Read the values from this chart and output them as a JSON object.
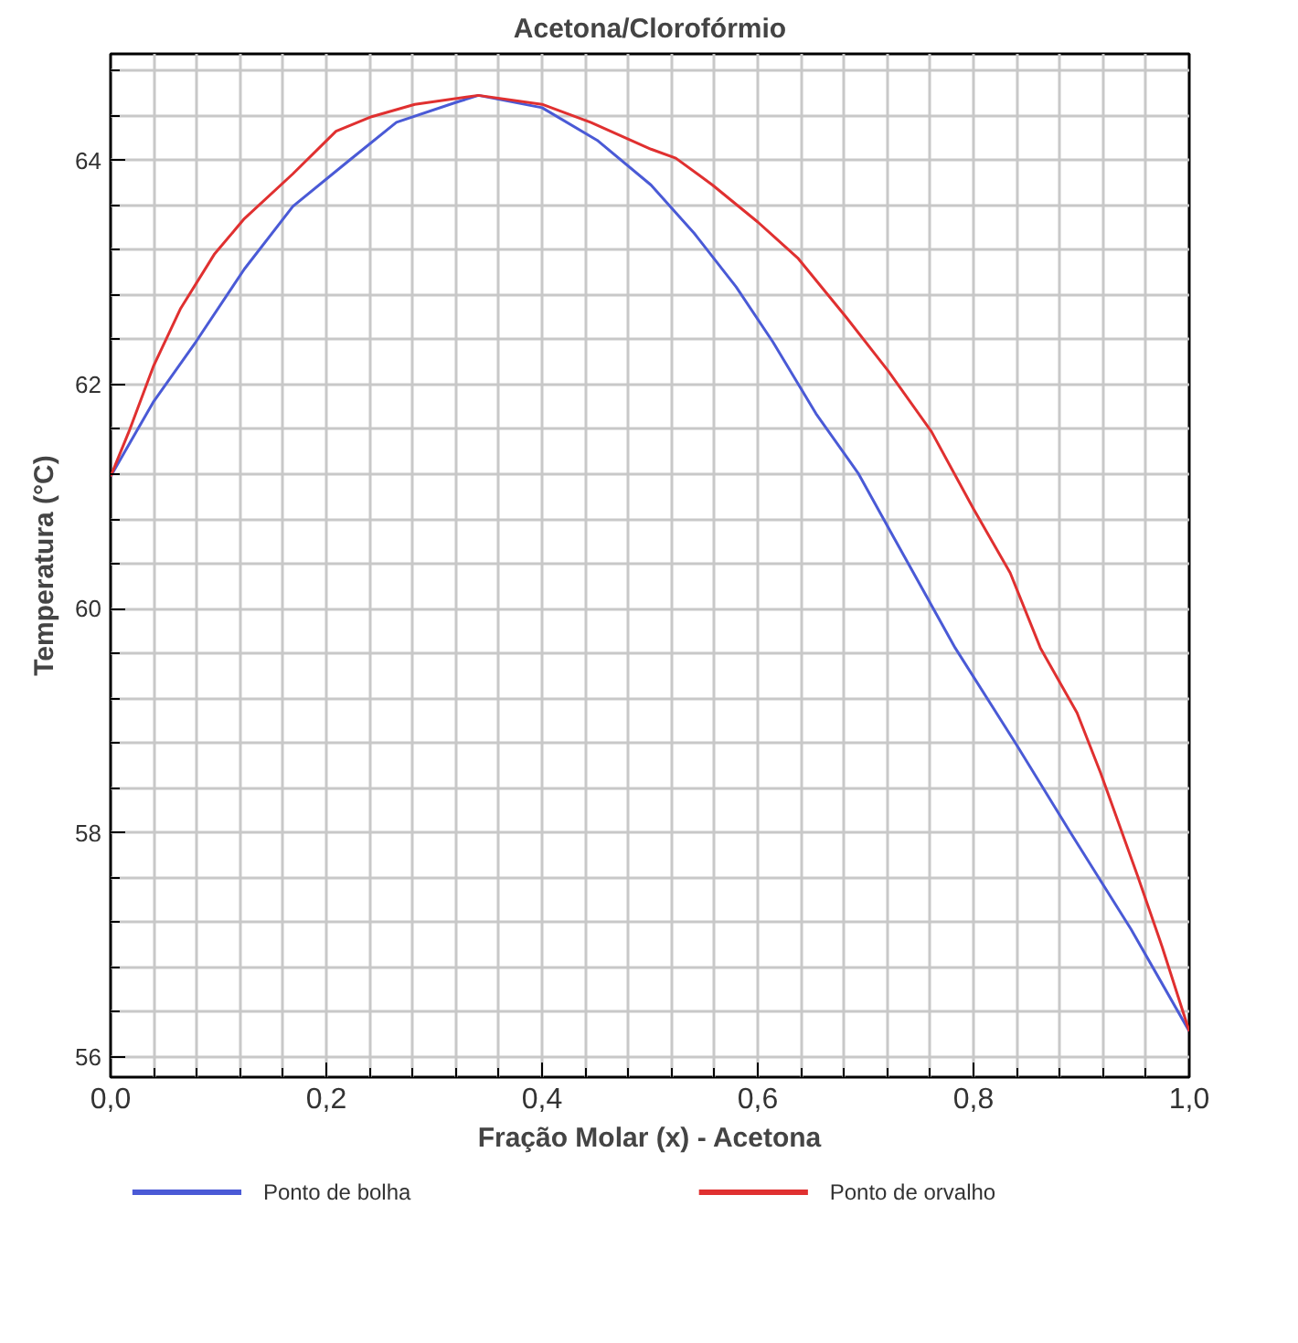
{
  "chart_data": {
    "type": "line",
    "title": "Acetona/Clorofórmio",
    "xlabel": "Fração Molar (x) - Acetona",
    "ylabel": "Temperatura (°C)",
    "xlim": [
      0,
      1.0
    ],
    "ylim": [
      55.82,
      64.95
    ],
    "xticks": [
      {
        "value": 0,
        "label": "0,0"
      },
      {
        "value": 0.04,
        "label": null
      },
      {
        "value": 0.08,
        "label": null
      },
      {
        "value": 0.12,
        "label": null
      },
      {
        "value": 0.16,
        "label": null
      },
      {
        "value": 0.2,
        "label": "0,2"
      },
      {
        "value": 0.24,
        "label": null
      },
      {
        "value": 0.28,
        "label": null
      },
      {
        "value": 0.32,
        "label": null
      },
      {
        "value": 0.36,
        "label": null
      },
      {
        "value": 0.4,
        "label": "0,4"
      },
      {
        "value": 0.44,
        "label": null
      },
      {
        "value": 0.48,
        "label": null
      },
      {
        "value": 0.52,
        "label": null
      },
      {
        "value": 0.56,
        "label": null
      },
      {
        "value": 0.6,
        "label": "0,6"
      },
      {
        "value": 0.64,
        "label": null
      },
      {
        "value": 0.68,
        "label": null
      },
      {
        "value": 0.72,
        "label": null
      },
      {
        "value": 0.76,
        "label": null
      },
      {
        "value": 0.8,
        "label": "0,8"
      },
      {
        "value": 0.84,
        "label": null
      },
      {
        "value": 0.88,
        "label": null
      },
      {
        "value": 0.92,
        "label": null
      },
      {
        "value": 0.96,
        "label": null
      },
      {
        "value": 1.0,
        "label": "1,0"
      }
    ],
    "yticks": [
      56,
      {
        "value": 56.4,
        "label": null
      },
      {
        "value": 56.8,
        "label": null
      },
      {
        "value": 57.2,
        "label": null
      },
      {
        "value": 57.6,
        "label": null
      },
      58,
      {
        "value": 58.4,
        "label": null
      },
      {
        "value": 58.8,
        "label": null
      },
      {
        "value": 59.2,
        "label": null
      },
      {
        "value": 59.6,
        "label": null
      },
      60,
      {
        "value": 60.4,
        "label": null
      },
      {
        "value": 60.8,
        "label": null
      },
      {
        "value": 61.2,
        "label": null
      },
      {
        "value": 61.6,
        "label": null
      },
      62,
      {
        "value": 62.4,
        "label": null
      },
      {
        "value": 62.8,
        "label": null
      },
      {
        "value": 63.2,
        "label": null
      },
      {
        "value": 63.6,
        "label": null
      },
      64,
      {
        "value": 64.4,
        "label": null
      },
      {
        "value": 64.8,
        "label": null
      }
    ],
    "grid": true,
    "legend": "bottom",
    "line_style": "solid",
    "marker": "none",
    "series": [
      {
        "name": "Ponto de bolha",
        "color": "#4a5ad6",
        "x": [
          0,
          0.04,
          0.079,
          0.124,
          0.169,
          0.22,
          0.265,
          0.321,
          0.341,
          0.4,
          0.451,
          0.501,
          0.541,
          0.58,
          0.614,
          0.654,
          0.693,
          0.727,
          0.783,
          0.839,
          0.89,
          0.946,
          1.0
        ],
        "values": [
          61.18,
          61.85,
          62.38,
          63.03,
          63.59,
          63.99,
          64.34,
          64.52,
          64.58,
          64.47,
          64.18,
          63.78,
          63.35,
          62.87,
          62.38,
          61.74,
          61.21,
          60.62,
          59.65,
          58.8,
          58.0,
          57.14,
          56.23
        ]
      },
      {
        "name": "Ponto de orvalho",
        "color": "#e03030",
        "x": [
          0,
          0.017,
          0.04,
          0.065,
          0.096,
          0.124,
          0.169,
          0.209,
          0.242,
          0.282,
          0.341,
          0.4,
          0.445,
          0.501,
          0.524,
          0.558,
          0.6,
          0.637,
          0.682,
          0.721,
          0.761,
          0.8,
          0.834,
          0.862,
          0.896,
          0.918,
          0.952,
          0.975,
          1.0
        ],
        "values": [
          61.18,
          61.58,
          62.17,
          62.68,
          63.16,
          63.48,
          63.88,
          64.26,
          64.39,
          64.5,
          64.58,
          64.5,
          64.34,
          64.1,
          64.02,
          63.78,
          63.45,
          63.13,
          62.6,
          62.12,
          61.58,
          60.89,
          60.32,
          59.65,
          59.07,
          58.53,
          57.62,
          56.98,
          56.23
        ]
      }
    ]
  }
}
